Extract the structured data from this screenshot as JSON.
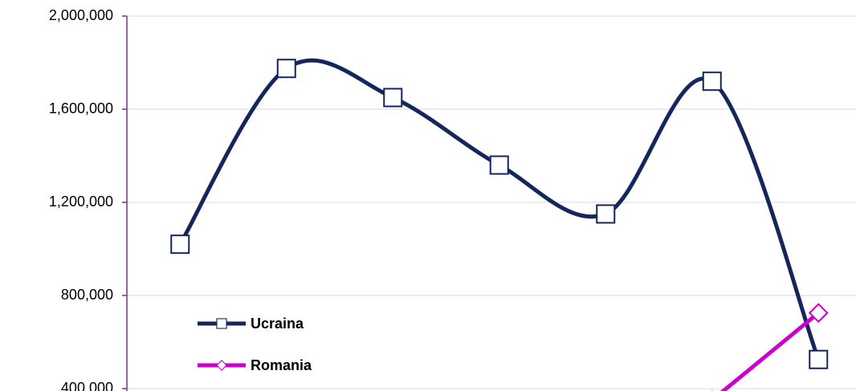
{
  "chart_data": {
    "type": "line",
    "categories": [
      null,
      null,
      null,
      null,
      null,
      null,
      null
    ],
    "series": [
      {
        "name": "Ucraina",
        "color": "#14265c",
        "marker": "square",
        "values": [
          1020000,
          1775000,
          1650000,
          1360000,
          1150000,
          1720000,
          525000
        ]
      },
      {
        "name": "Romania",
        "color": "#cc00cc",
        "marker": "diamond",
        "values": [
          null,
          null,
          null,
          null,
          null,
          350000,
          725000
        ]
      }
    ],
    "ylim": [
      400000,
      2000000
    ],
    "yticks": [
      {
        "value": 400000,
        "label": "400,000"
      },
      {
        "value": 800000,
        "label": "800,000"
      },
      {
        "value": 1200000,
        "label": "1,200,000"
      },
      {
        "value": 1600000,
        "label": "1,600,000"
      },
      {
        "value": 2000000,
        "label": "2,000,000"
      }
    ],
    "grid": true,
    "smooth": true,
    "legend": "lower left"
  }
}
